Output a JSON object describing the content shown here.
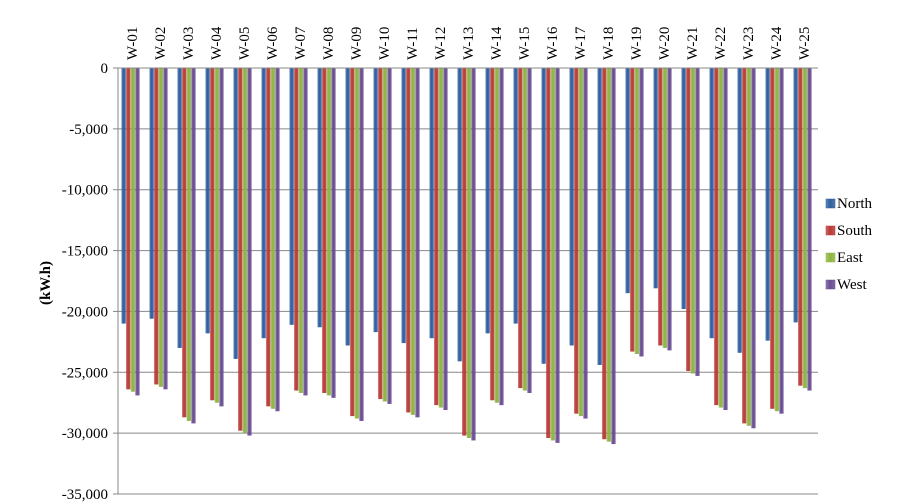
{
  "chart_data": {
    "type": "bar",
    "title": "",
    "xlabel": "",
    "ylabel": "(kW.h)",
    "ylim": [
      -35000,
      0
    ],
    "yticks": [
      0,
      -5000,
      -10000,
      -15000,
      -20000,
      -25000,
      -30000,
      -35000
    ],
    "ytick_labels": [
      "0",
      "-5,000",
      "-10,000",
      "-15,000",
      "-20,000",
      "-25,000",
      "-30,000",
      "-35,000"
    ],
    "grid": true,
    "legend_position": "right",
    "categories": [
      "W-01",
      "W-02",
      "W-03",
      "W-04",
      "W-05",
      "W-06",
      "W-07",
      "W-08",
      "W-09",
      "W-10",
      "W-11",
      "W-12",
      "W-13",
      "W-14",
      "W-15",
      "W-16",
      "W-17",
      "W-18",
      "W-19",
      "W-20",
      "W-21",
      "W-22",
      "W-23",
      "W-24",
      "W-25"
    ],
    "series": [
      {
        "name": "North",
        "color": "#2E5E9E",
        "values": [
          -21000,
          -20600,
          -23000,
          -21800,
          -23900,
          -22200,
          -21100,
          -21300,
          -22800,
          -21700,
          -22600,
          -22200,
          -24100,
          -21800,
          -21000,
          -24300,
          -22800,
          -24400,
          -18500,
          -18100,
          -19800,
          -22200,
          -23400,
          -22400,
          -20900
        ]
      },
      {
        "name": "South",
        "color": "#B83A36",
        "values": [
          -26400,
          -26000,
          -28700,
          -27300,
          -29800,
          -27800,
          -26500,
          -26700,
          -28600,
          -27200,
          -28300,
          -27700,
          -30200,
          -27300,
          -26300,
          -30400,
          -28400,
          -30500,
          -23300,
          -22800,
          -24900,
          -27700,
          -29200,
          -28000,
          -26100
        ]
      },
      {
        "name": "East",
        "color": "#8DB440",
        "values": [
          -26600,
          -26200,
          -29000,
          -27500,
          -30000,
          -28000,
          -26700,
          -26900,
          -28800,
          -27400,
          -28500,
          -27900,
          -30400,
          -27500,
          -26500,
          -30600,
          -28600,
          -30700,
          -23500,
          -23000,
          -25100,
          -27900,
          -29400,
          -28200,
          -26300
        ]
      },
      {
        "name": "West",
        "color": "#6A4C93",
        "values": [
          -26900,
          -26400,
          -29200,
          -27800,
          -30200,
          -28200,
          -26900,
          -27100,
          -29000,
          -27600,
          -28700,
          -28100,
          -30600,
          -27700,
          -26700,
          -30800,
          -28800,
          -30900,
          -23700,
          -23200,
          -25300,
          -28100,
          -29600,
          -28400,
          -26500
        ]
      }
    ]
  }
}
